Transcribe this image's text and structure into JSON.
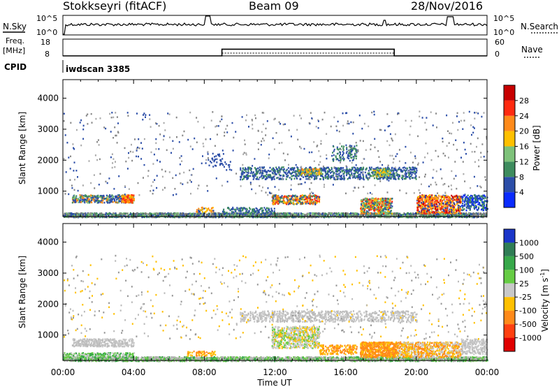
{
  "header": {
    "station": "Stokkseyri (fitACF)",
    "beam": "Beam 09",
    "date": "28/Nov/2016"
  },
  "strip_labels": {
    "nsky": "N.Sky",
    "nsearch": "N.Search",
    "freq_line1": "Freq.",
    "freq_line2": "[MHz]",
    "nave": "Nave",
    "cpid": "CPID",
    "noise_tick_hi": "10^5",
    "noise_tick_lo": "10^0",
    "noise_tick_hi_r": "10^5",
    "noise_tick_lo_r": "10^0",
    "freq_tick_hi": "18",
    "freq_tick_lo": "8",
    "nave_tick_hi": "60",
    "nave_tick_lo": "0"
  },
  "cpid_text": "iwdscan 3385",
  "chart_data": [
    {
      "type": "line",
      "title": "N.Sky",
      "yscale": "log",
      "ylim": [
        1,
        100000
      ],
      "x": [
        "00:00",
        "04:00",
        "08:00",
        "12:00",
        "16:00",
        "20:00",
        "00:00"
      ],
      "note_series": "noise level approximately constant near 1e3 with spikes near 08:15, 21:55"
    },
    {
      "type": "line",
      "title": "Freq. / Nave",
      "series": [
        {
          "name": "Freq.",
          "x": [
            "00:00",
            "09:00",
            "09:00",
            "18:45",
            "18:45",
            "24:00"
          ],
          "values": [
            8,
            8,
            12,
            12,
            8,
            8
          ]
        }
      ],
      "ylim_left": [
        8,
        18
      ],
      "ylim_right": [
        0,
        60
      ]
    },
    {
      "type": "heatmap",
      "xlabel": "",
      "ylabel": "Slant Range [km]",
      "yticks": [
        1000,
        2000,
        3000,
        4000
      ],
      "ylim": [
        180,
        4600
      ],
      "xlim_hours": [
        0,
        24
      ],
      "colorbar": {
        "label": "Power [dB]",
        "ticks": [
          "4",
          "8",
          "12",
          "16",
          "20",
          "24",
          "28"
        ],
        "colors": [
          "#0a2bff",
          "#2c4ea8",
          "#3e8c5e",
          "#7ec27a",
          "#ffc000",
          "#ff8a1a",
          "#ff2a10",
          "#c70000"
        ]
      },
      "features": [
        {
          "band": "near range echoes",
          "time": [
            "00:30",
            "04:00"
          ],
          "range_km": [
            650,
            900
          ]
        },
        {
          "band": "F-region",
          "time": [
            "09:30",
            "20:00"
          ],
          "range_km": [
            1400,
            1800
          ]
        },
        {
          "band": "strong echoes",
          "time": [
            "17:00",
            "22:30"
          ],
          "range_km": [
            300,
            900
          ]
        }
      ]
    },
    {
      "type": "heatmap",
      "xlabel": "Time UT",
      "ylabel": "Slant Range [km]",
      "yticks": [
        1000,
        2000,
        3000,
        4000
      ],
      "ylim": [
        180,
        4600
      ],
      "x_tick_labels": [
        "00:00",
        "04:00",
        "08:00",
        "12:00",
        "16:00",
        "20:00",
        "00:00"
      ],
      "colorbar": {
        "label": "Velocity [m s^-1]",
        "ticks": [
          "1000",
          "500",
          "100",
          "25",
          "-25",
          "-100",
          "-500",
          "-1000"
        ],
        "colors": [
          "#1a35c9",
          "#2f7d55",
          "#37a84a",
          "#66cc44",
          "#c8c8c8",
          "#ffc000",
          "#ff8a1a",
          "#ff4010",
          "#e00000"
        ]
      }
    }
  ],
  "axis_labels": {
    "ylabel_power": "Slant Range [km]",
    "ylabel_vel": "Slant Range [km]",
    "xlabel": "Time UT",
    "y_ticks": [
      "1000",
      "2000",
      "3000",
      "4000"
    ],
    "x_ticks": [
      "00:00",
      "04:00",
      "08:00",
      "12:00",
      "16:00",
      "20:00",
      "00:00"
    ],
    "power_cb_label": "Power [dB]",
    "vel_cb_label": "Velocity [m s",
    "vel_cb_label_sup": "-1",
    "vel_cb_label_end": "]",
    "power_cb_ticks": [
      "4",
      "8",
      "12",
      "16",
      "20",
      "24",
      "28"
    ],
    "vel_cb_ticks": [
      "1000",
      "500",
      "100",
      "25",
      "-25",
      "-100",
      "-500",
      "-1000"
    ]
  }
}
